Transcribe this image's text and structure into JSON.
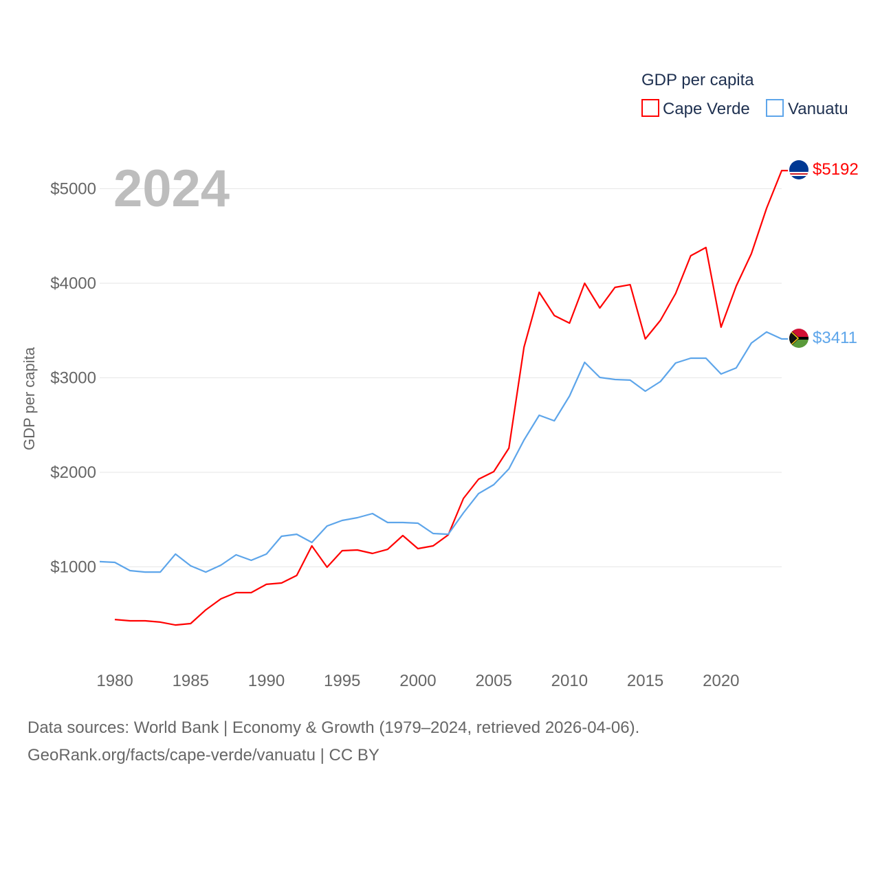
{
  "chart_data": {
    "type": "line",
    "title": "GDP per capita",
    "ylabel": "GDP per capita",
    "xlabel": "",
    "year_label": "2024",
    "xlim": [
      1979,
      2024
    ],
    "ylim": [
      0,
      5500
    ],
    "x_ticks": [
      1980,
      1985,
      1990,
      1995,
      2000,
      2005,
      2010,
      2015,
      2020
    ],
    "y_ticks": [
      1000,
      2000,
      3000,
      4000,
      5000
    ],
    "y_tick_labels": [
      "$1000",
      "$2000",
      "$3000",
      "$4000",
      "$5000"
    ],
    "legend_position": "top-right",
    "grid": true,
    "series": [
      {
        "name": "Cape Verde",
        "color": "#ff0000",
        "end_label": "$5192",
        "x": [
          1980,
          1981,
          1982,
          1983,
          1984,
          1985,
          1986,
          1987,
          1988,
          1989,
          1990,
          1991,
          1992,
          1993,
          1994,
          1995,
          1996,
          1997,
          1998,
          1999,
          2000,
          2001,
          2002,
          2003,
          2004,
          2005,
          2006,
          2007,
          2008,
          2009,
          2010,
          2011,
          2012,
          2013,
          2014,
          2015,
          2016,
          2017,
          2018,
          2019,
          2020,
          2021,
          2022,
          2023,
          2024
        ],
        "values": [
          443,
          429,
          429,
          415,
          385,
          400,
          545,
          662,
          727,
          727,
          815,
          829,
          909,
          1222,
          996,
          1171,
          1178,
          1142,
          1185,
          1331,
          1193,
          1222,
          1338,
          1724,
          1927,
          2007,
          2255,
          3324,
          3905,
          3658,
          3578,
          4000,
          3738,
          3956,
          3985,
          3411,
          3607,
          3891,
          4291,
          4378,
          3535,
          3971,
          4313,
          4793,
          5192
        ]
      },
      {
        "name": "Vanuatu",
        "color": "#5da5ea",
        "end_label": "$3411",
        "x": [
          1979,
          1980,
          1981,
          1982,
          1983,
          1984,
          1985,
          1986,
          1987,
          1988,
          1989,
          1990,
          1991,
          1992,
          1993,
          1994,
          1995,
          1996,
          1997,
          1998,
          1999,
          2000,
          2001,
          2002,
          2003,
          2004,
          2005,
          2006,
          2007,
          2008,
          2009,
          2010,
          2011,
          2012,
          2013,
          2014,
          2015,
          2016,
          2017,
          2018,
          2019,
          2020,
          2021,
          2022,
          2023,
          2024
        ],
        "values": [
          1055,
          1047,
          960,
          945,
          945,
          1135,
          1011,
          945,
          1018,
          1127,
          1069,
          1135,
          1324,
          1345,
          1258,
          1432,
          1491,
          1520,
          1564,
          1469,
          1469,
          1462,
          1353,
          1345,
          1571,
          1775,
          1869,
          2036,
          2342,
          2604,
          2545,
          2807,
          3164,
          3004,
          2982,
          2975,
          2858,
          2960,
          3156,
          3207,
          3207,
          3040,
          3105,
          3367,
          3484,
          3411
        ]
      }
    ]
  },
  "footer": {
    "line1": "Data sources: World Bank | Economy & Growth (1979–2024, retrieved 2026-04-06).",
    "line2": "GeoRank.org/facts/cape-verde/vanuatu | CC BY"
  }
}
